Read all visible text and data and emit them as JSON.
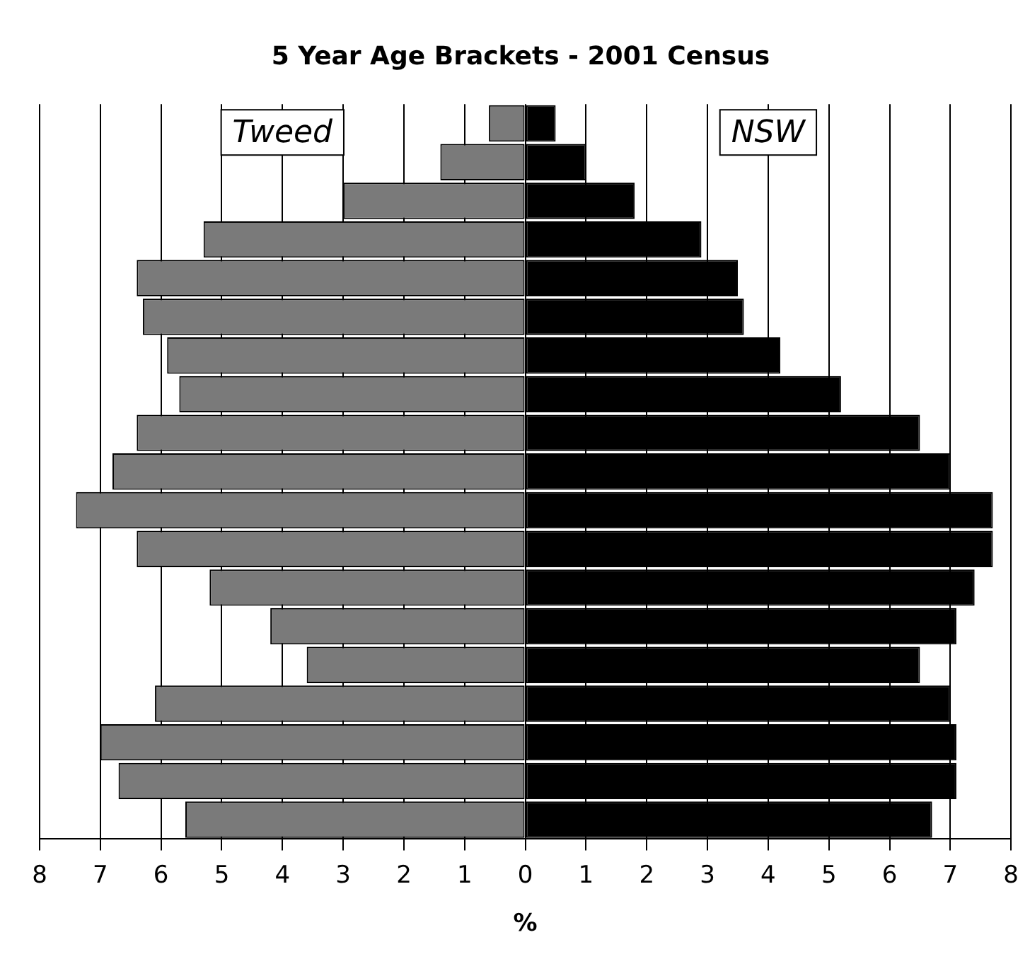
{
  "chart_data": {
    "type": "bar",
    "orientation": "horizontal",
    "stacked": true,
    "title": "5 Year Age Brackets - 2001 Census",
    "xlabel": "%",
    "categories": [
      null,
      null,
      null,
      null,
      null,
      null,
      null,
      null,
      null,
      null,
      null,
      null,
      null,
      null,
      null,
      null,
      null,
      null,
      null
    ],
    "series": [
      {
        "name": "Tweed",
        "color": "#7a7a7a",
        "values": [
          -0.6,
          -1.4,
          -3.0,
          -5.3,
          -6.4,
          -6.3,
          -5.9,
          -5.7,
          -6.4,
          -6.8,
          -7.4,
          -6.4,
          -5.2,
          -4.2,
          -3.6,
          -6.1,
          -7.0,
          -6.7,
          -5.6
        ]
      },
      {
        "name": "NSW",
        "color": "#000000",
        "values": [
          0.5,
          1.0,
          1.8,
          2.9,
          3.5,
          3.6,
          4.2,
          5.2,
          6.5,
          7.0,
          7.7,
          7.7,
          7.4,
          7.1,
          6.5,
          7.0,
          7.1,
          7.1,
          6.7
        ]
      }
    ],
    "xlim": [
      -8,
      8
    ],
    "xticks": [
      {
        "value": -8,
        "label": "8"
      },
      {
        "value": -7,
        "label": "7"
      },
      {
        "value": -6,
        "label": "6"
      },
      {
        "value": -5,
        "label": "5"
      },
      {
        "value": -4,
        "label": "4"
      },
      {
        "value": -3,
        "label": "3"
      },
      {
        "value": -2,
        "label": "2"
      },
      {
        "value": -1,
        "label": "1"
      },
      0,
      1,
      2,
      3,
      4,
      5,
      6,
      7,
      8
    ],
    "grid": "x",
    "tick_labels": "x",
    "legend": false
  }
}
